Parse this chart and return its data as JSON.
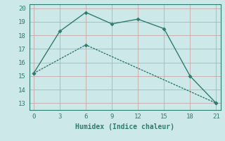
{
  "line1_x": [
    0,
    3,
    6,
    9,
    12,
    15,
    18,
    21
  ],
  "line1_y": [
    15.2,
    18.3,
    19.7,
    18.85,
    19.2,
    18.5,
    15.0,
    13.0
  ],
  "line2_x": [
    0,
    6,
    21
  ],
  "line2_y": [
    15.2,
    17.3,
    13.0
  ],
  "color": "#2e7d6e",
  "bg_color": "#cce8e8",
  "grid_color": "#c8a8a8",
  "xlabel": "Humidex (Indice chaleur)",
  "xlim": [
    -0.5,
    21.5
  ],
  "ylim": [
    12.5,
    20.3
  ],
  "xticks": [
    0,
    3,
    6,
    9,
    12,
    15,
    18,
    21
  ],
  "yticks": [
    13,
    14,
    15,
    16,
    17,
    18,
    19,
    20
  ],
  "figsize": [
    3.2,
    2.0
  ],
  "dpi": 100,
  "marker_size": 3,
  "linewidth": 1.0,
  "xlabel_fontsize": 7,
  "tick_fontsize": 6.5
}
